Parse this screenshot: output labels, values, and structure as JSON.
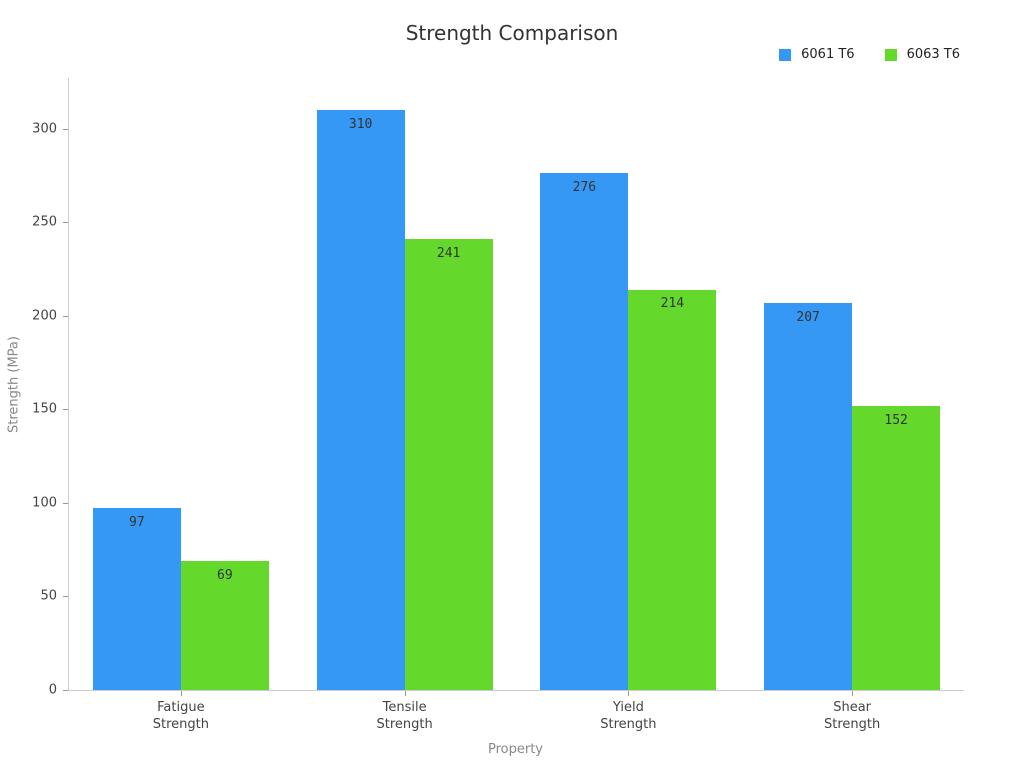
{
  "chart_data": {
    "type": "bar",
    "title": "Strength Comparison",
    "xlabel": "Property",
    "ylabel": "Strength (MPa)",
    "categories": [
      "Fatigue\nStrength",
      "Tensile\nStrength",
      "Yield\nStrength",
      "Shear\nStrength"
    ],
    "series": [
      {
        "name": "6061 T6",
        "color": "#3598f4",
        "values": [
          97,
          310,
          276,
          207
        ]
      },
      {
        "name": "6063 T6",
        "color": "#64d92b",
        "values": [
          69,
          241,
          214,
          152
        ]
      }
    ],
    "yticks": [
      0,
      50,
      100,
      150,
      200,
      250,
      300
    ],
    "ylim": [
      0,
      327
    ],
    "show_value_labels": true,
    "legend_position": "top-right",
    "grid": false,
    "colors": {
      "axis_line": "#cccccc",
      "tick_mark": "#999999",
      "title_text": "#333333",
      "axis_label_text": "#888888",
      "tick_label_text": "#444444",
      "value_label_text": "#333333",
      "background": "#ffffff"
    }
  }
}
